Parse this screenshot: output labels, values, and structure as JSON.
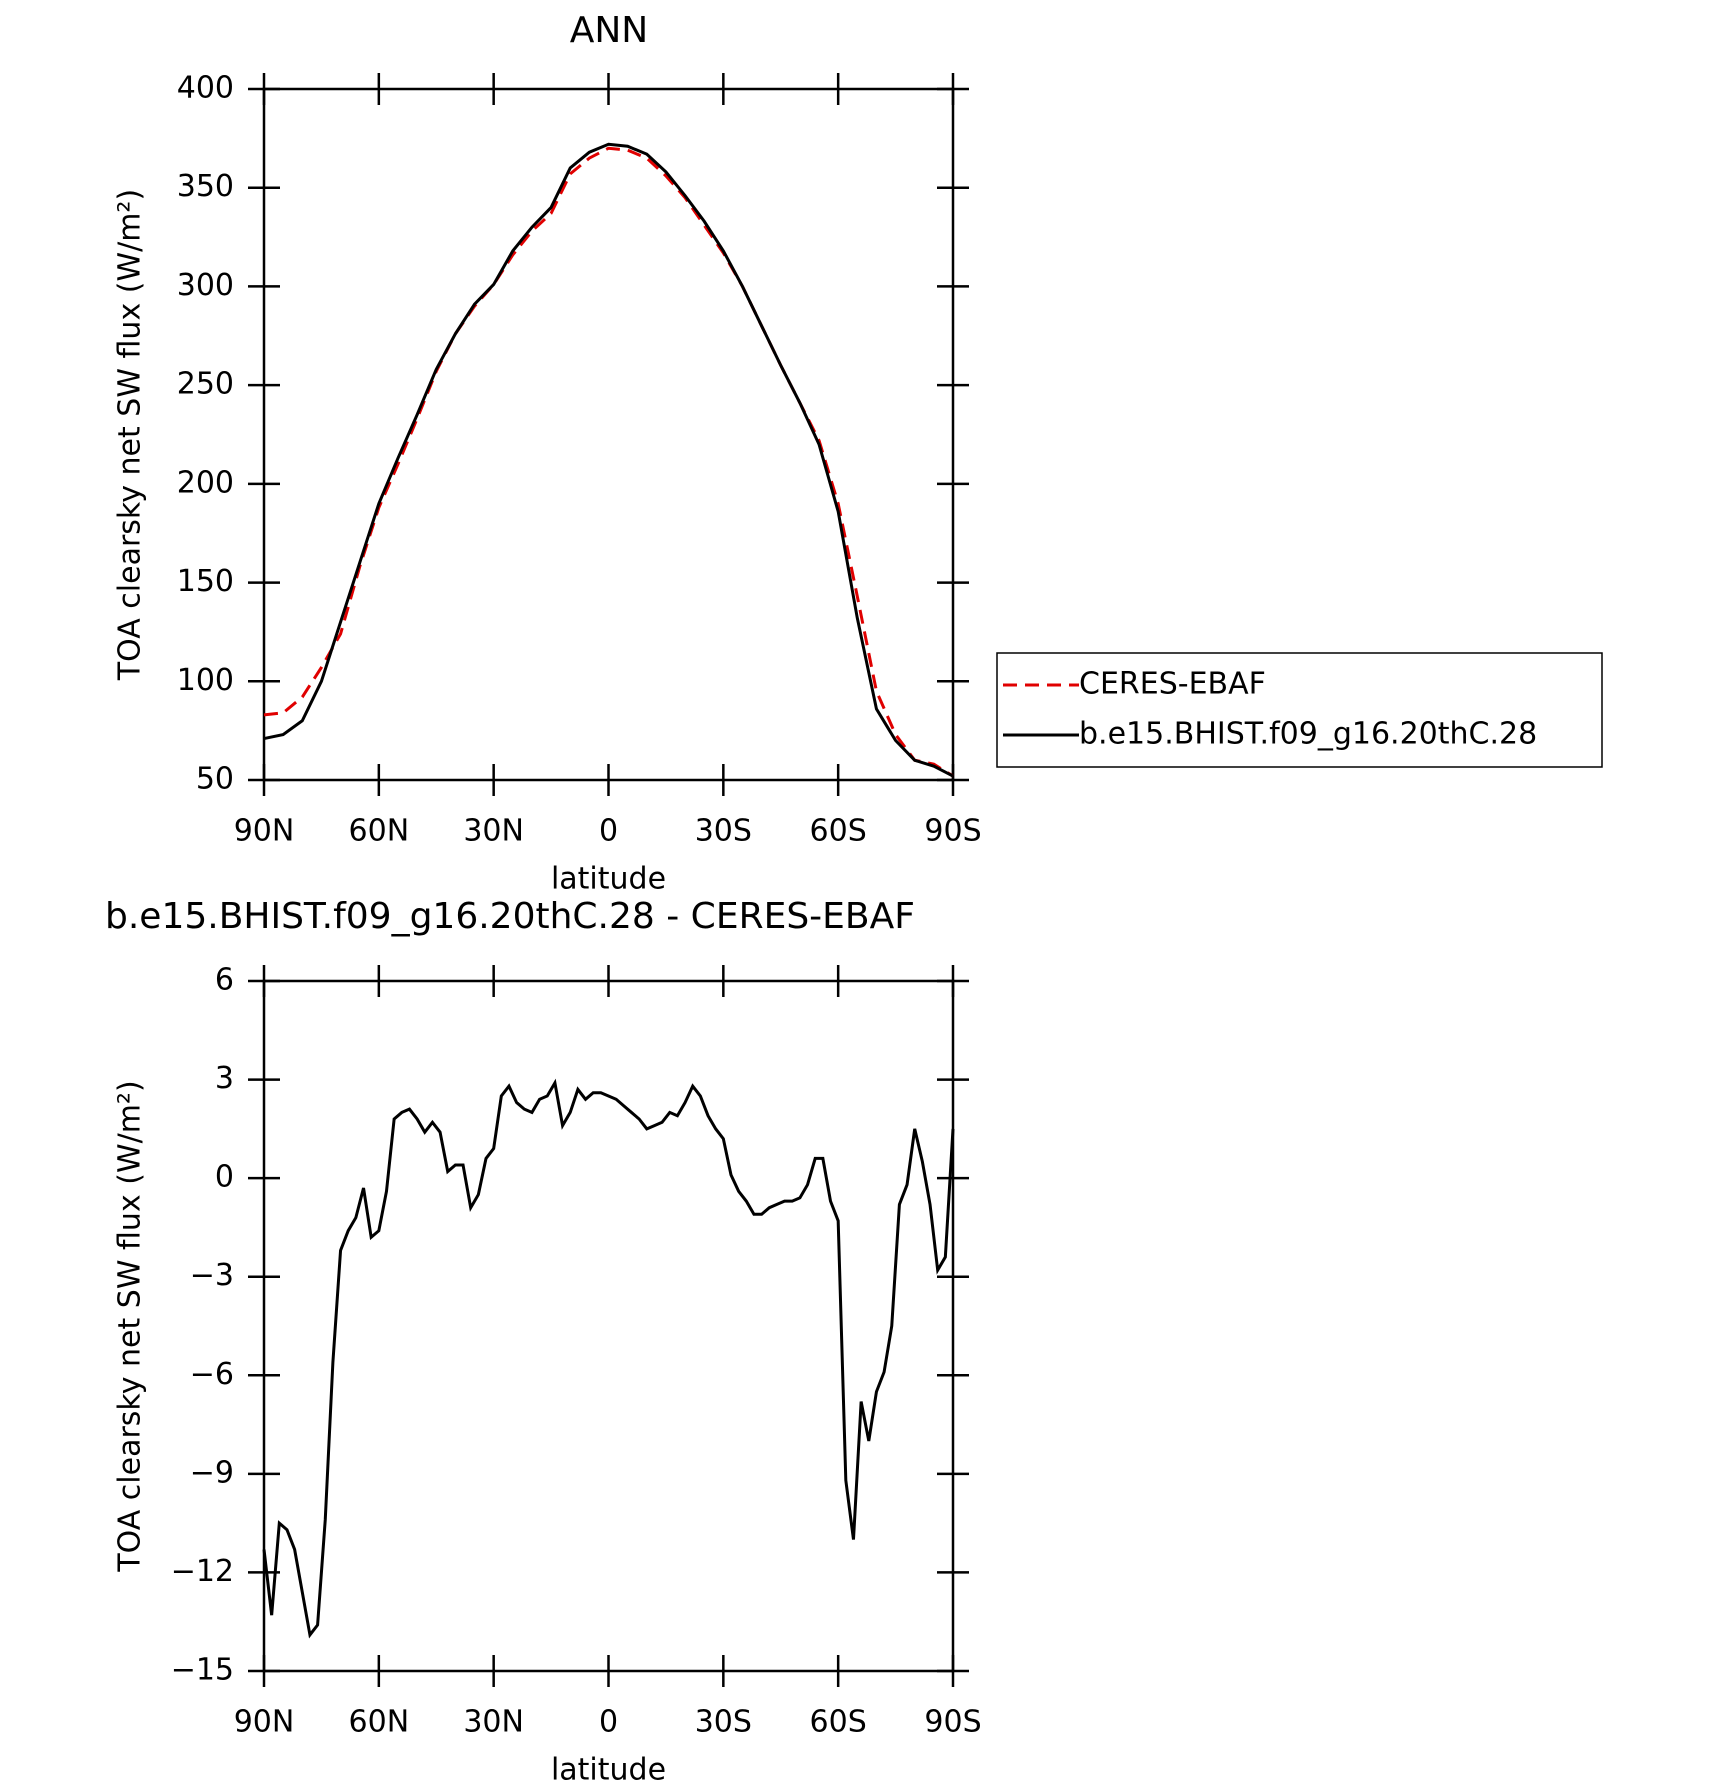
{
  "chart_data": [
    {
      "type": "line",
      "title": "ANN",
      "x_label": "latitude",
      "y_label": "TOA clearsky net SW flux (W/m²)",
      "x": [
        90,
        85,
        80,
        75,
        70,
        65,
        60,
        55,
        50,
        45,
        40,
        35,
        30,
        25,
        20,
        15,
        10,
        5,
        0,
        -5,
        -10,
        -15,
        -20,
        -25,
        -30,
        -35,
        -40,
        -45,
        -50,
        -55,
        -60,
        -65,
        -70,
        -75,
        -80,
        -85,
        -90
      ],
      "series": [
        {
          "name": "CERES-EBAF",
          "color": "#e00000",
          "linestyle": "dashed",
          "values": [
            83,
            84,
            92,
            107,
            124,
            158,
            188,
            210,
            233,
            257,
            276,
            290,
            301,
            316,
            328,
            337,
            357,
            365,
            370,
            369,
            365,
            356,
            345,
            331,
            317,
            300,
            280,
            260,
            241,
            222,
            190,
            143,
            95,
            73,
            60,
            58,
            52
          ]
        },
        {
          "name": "b.e15.BHIST.f09_g16.20thC.28",
          "color": "#000000",
          "linestyle": "solid",
          "values": [
            71,
            73,
            80,
            100,
            130,
            160,
            190,
            213,
            235,
            258,
            276,
            291,
            301,
            318,
            330,
            340,
            360,
            368,
            372,
            371,
            367,
            358,
            346,
            333,
            318,
            300,
            280,
            260,
            241,
            220,
            186,
            132,
            86,
            70,
            60,
            57,
            52
          ]
        }
      ],
      "xlim": [
        90,
        -90
      ],
      "xticks": [
        {
          "value": 90,
          "label": "90N"
        },
        {
          "value": 60,
          "label": "60N"
        },
        {
          "value": 30,
          "label": "30N"
        },
        0,
        {
          "value": -30,
          "label": "30S"
        },
        {
          "value": -60,
          "label": "60S"
        },
        {
          "value": -90,
          "label": "90S"
        }
      ],
      "ylim": [
        50,
        400
      ],
      "yticks": [
        50,
        100,
        150,
        200,
        250,
        300,
        350,
        400
      ],
      "legend": "right"
    },
    {
      "type": "line",
      "title": "b.e15.BHIST.f09_g16.20thC.28 - CERES-EBAF",
      "x_label": "latitude",
      "y_label": "TOA clearsky net SW flux (W/m²)",
      "x": [
        90,
        88,
        86,
        84,
        82,
        80,
        78,
        76,
        74,
        72,
        70,
        68,
        66,
        64,
        62,
        60,
        58,
        56,
        54,
        52,
        50,
        48,
        46,
        44,
        42,
        40,
        38,
        36,
        34,
        32,
        30,
        28,
        26,
        24,
        22,
        20,
        18,
        16,
        14,
        12,
        10,
        8,
        6,
        4,
        2,
        0,
        -2,
        -4,
        -6,
        -8,
        -10,
        -12,
        -14,
        -16,
        -18,
        -20,
        -22,
        -24,
        -26,
        -28,
        -30,
        -32,
        -34,
        -36,
        -38,
        -40,
        -42,
        -44,
        -46,
        -48,
        -50,
        -52,
        -54,
        -56,
        -58,
        -60,
        -62,
        -64,
        -66,
        -68,
        -70,
        -72,
        -74,
        -76,
        -78,
        -80,
        -82,
        -84,
        -86,
        -88,
        -90
      ],
      "series": [
        {
          "color": "#000000",
          "linestyle": "solid",
          "values": [
            -11.3,
            -13.3,
            -10.5,
            -10.7,
            -11.3,
            -12.6,
            -13.9,
            -13.6,
            -10.4,
            -5.6,
            -2.2,
            -1.6,
            -1.2,
            -0.3,
            -1.8,
            -1.6,
            -0.4,
            1.8,
            2.0,
            2.1,
            1.8,
            1.4,
            1.7,
            1.4,
            0.2,
            0.4,
            0.4,
            -0.9,
            -0.5,
            0.6,
            0.9,
            2.5,
            2.8,
            2.3,
            2.1,
            2.0,
            2.4,
            2.5,
            2.9,
            1.6,
            2.0,
            2.7,
            2.4,
            2.6,
            2.6,
            2.5,
            2.4,
            2.2,
            2.0,
            1.8,
            1.5,
            1.6,
            1.7,
            2.0,
            1.9,
            2.3,
            2.8,
            2.5,
            1.9,
            1.5,
            1.2,
            0.1,
            -0.4,
            -0.7,
            -1.1,
            -1.1,
            -0.9,
            -0.8,
            -0.7,
            -0.7,
            -0.6,
            -0.2,
            0.6,
            0.6,
            -0.7,
            -1.3,
            -9.2,
            -11.0,
            -6.8,
            -8.0,
            -6.5,
            -5.9,
            -4.5,
            -0.8,
            -0.2,
            1.5,
            0.5,
            -0.8,
            -2.8,
            -2.4,
            1.5
          ]
        }
      ],
      "xlim": [
        90,
        -90
      ],
      "xticks": [
        {
          "value": 90,
          "label": "90N"
        },
        {
          "value": 60,
          "label": "60N"
        },
        {
          "value": 30,
          "label": "30N"
        },
        0,
        {
          "value": -30,
          "label": "30S"
        },
        {
          "value": -60,
          "label": "60S"
        },
        {
          "value": -90,
          "label": "90S"
        }
      ],
      "ylim": [
        -15,
        6
      ],
      "yticks": [
        {
          "value": -15,
          "label": "−15"
        },
        {
          "value": -12,
          "label": "−12"
        },
        {
          "value": -9,
          "label": "−9"
        },
        {
          "value": -6,
          "label": "−6"
        },
        {
          "value": -3,
          "label": "−3"
        },
        0,
        3,
        6
      ]
    }
  ]
}
